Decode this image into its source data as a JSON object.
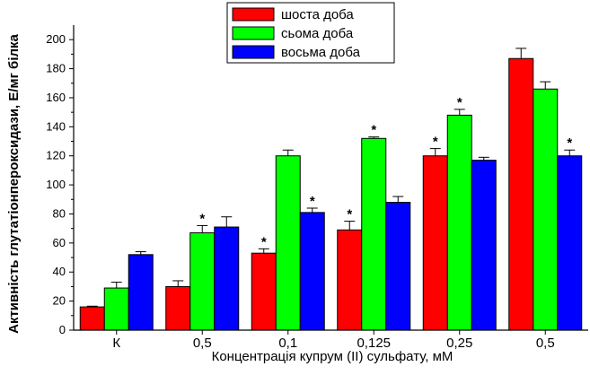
{
  "chart_data": {
    "type": "bar",
    "title": "",
    "xlabel": "Концентрація купрум (ІІ) сульфату, мМ",
    "ylabel": "Активність глутатіонпероксидази, Е/мг білка",
    "categories": [
      "К",
      "0,5",
      "0,1",
      "0,125",
      "0,25",
      "0,5"
    ],
    "ylim": [
      0,
      210
    ],
    "yticks": [
      0,
      20,
      40,
      60,
      80,
      100,
      120,
      140,
      160,
      180,
      200
    ],
    "legend_position": "top-center",
    "grid": false,
    "significance_marker": "*",
    "series": [
      {
        "name": "шоста доба",
        "color": "#ff0000",
        "values": [
          16,
          30,
          53,
          69,
          120,
          187
        ],
        "errors": [
          0.5,
          4,
          3,
          6,
          5,
          7
        ],
        "significant": [
          false,
          false,
          true,
          true,
          true,
          false
        ]
      },
      {
        "name": "сьома доба",
        "color": "#00ff00",
        "values": [
          29,
          67,
          120,
          132,
          148,
          166
        ],
        "errors": [
          4,
          5,
          4,
          1,
          4,
          5
        ],
        "significant": [
          false,
          true,
          false,
          true,
          true,
          false
        ]
      },
      {
        "name": "восьма доба",
        "color": "#0000ff",
        "values": [
          52,
          71,
          81,
          88,
          117,
          120
        ],
        "errors": [
          2,
          7,
          3,
          4,
          2,
          4
        ],
        "significant": [
          false,
          false,
          true,
          false,
          false,
          true
        ]
      }
    ]
  }
}
